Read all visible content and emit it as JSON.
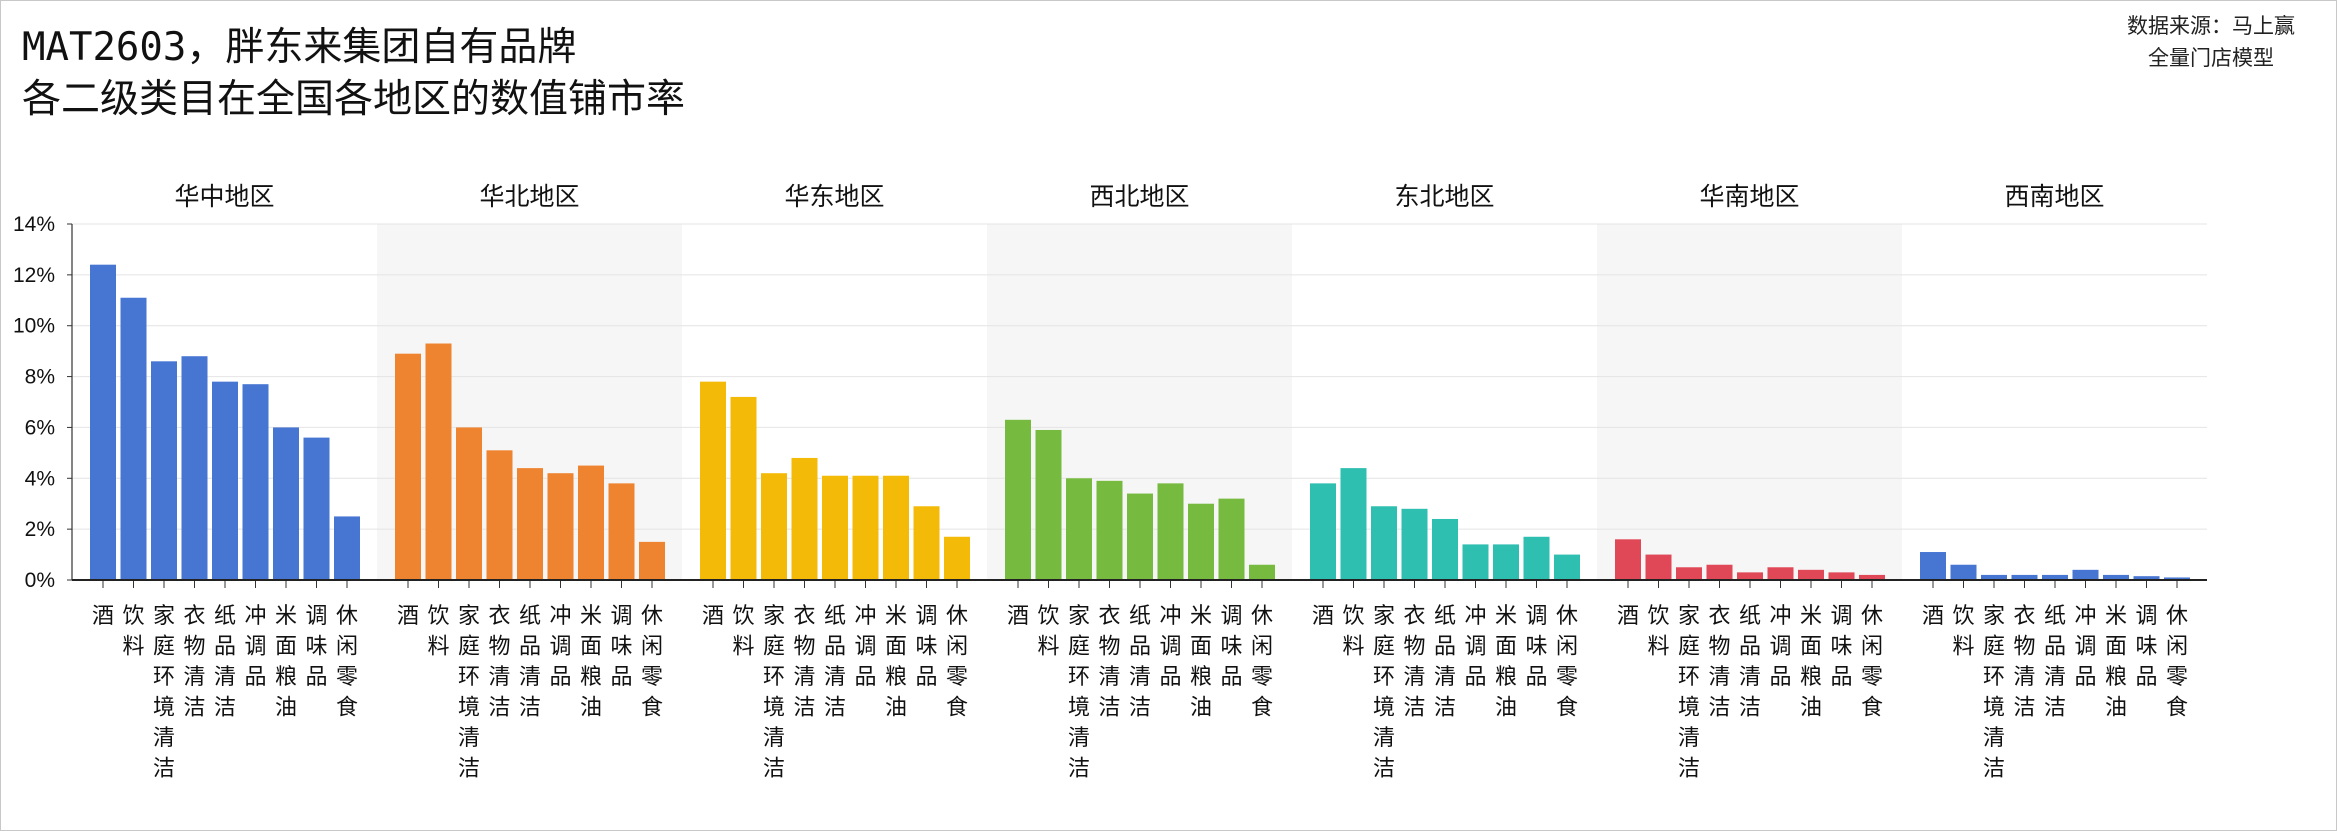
{
  "title": {
    "line1": "MAT2603，胖东来集团自有品牌",
    "line2": "各二级类目在全国各地区的数值铺市率"
  },
  "source": {
    "line1": "数据来源：马上赢",
    "line2": "全量门店模型"
  },
  "chart_data": {
    "type": "bar",
    "ylim": [
      0,
      14
    ],
    "yticks": [
      0,
      2,
      4,
      6,
      8,
      10,
      12,
      14
    ],
    "ytick_labels": [
      "0%",
      "2%",
      "4%",
      "6%",
      "8%",
      "10%",
      "12%",
      "14%"
    ],
    "categories": [
      "酒",
      "饮料",
      "家庭环境清洁",
      "衣物清洁",
      "纸品清洁",
      "冲调品",
      "米面粮油",
      "调味品",
      "休闲零食"
    ],
    "panels": [
      {
        "region": "华中地区",
        "color": "#4675d2",
        "values": [
          12.4,
          11.1,
          8.6,
          8.8,
          7.8,
          7.7,
          6.0,
          5.6,
          2.5
        ]
      },
      {
        "region": "华北地区",
        "color": "#ef8430",
        "values": [
          8.9,
          9.3,
          6.0,
          5.1,
          4.4,
          4.2,
          4.5,
          3.8,
          1.5
        ]
      },
      {
        "region": "华东地区",
        "color": "#f3ba07",
        "values": [
          7.8,
          7.2,
          4.2,
          4.8,
          4.1,
          4.1,
          4.1,
          2.9,
          1.7
        ]
      },
      {
        "region": "西北地区",
        "color": "#76bb40",
        "values": [
          6.3,
          5.9,
          4.0,
          3.9,
          3.4,
          3.8,
          3.0,
          3.2,
          0.6
        ]
      },
      {
        "region": "东北地区",
        "color": "#2ebfb0",
        "values": [
          3.8,
          4.4,
          2.9,
          2.8,
          2.4,
          1.4,
          1.4,
          1.7,
          1.0
        ]
      },
      {
        "region": "华南地区",
        "color": "#e04757",
        "values": [
          1.6,
          1.0,
          0.5,
          0.6,
          0.3,
          0.5,
          0.4,
          0.3,
          0.2
        ]
      },
      {
        "region": "西南地区",
        "color": "#4675d2",
        "values": [
          1.1,
          0.6,
          0.2,
          0.2,
          0.2,
          0.4,
          0.2,
          0.15,
          0.1
        ]
      }
    ]
  }
}
